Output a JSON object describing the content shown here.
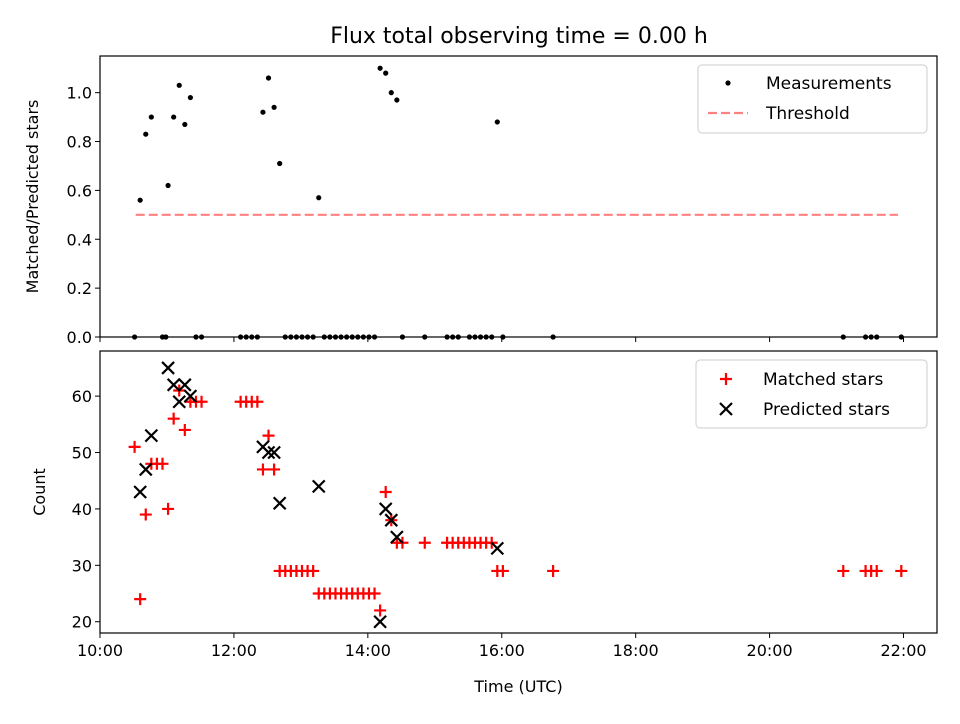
{
  "title": "Flux total observing time = 0.00 h",
  "colors": {
    "matched": "#ff0000",
    "predicted": "#000000",
    "measurement": "#000000",
    "threshold": "#ff8080"
  },
  "chart_data": [
    {
      "type": "scatter",
      "ylabel": "Matched/Predicted stars",
      "xlim": [
        "10:00",
        "22:30"
      ],
      "ylim": [
        0,
        1.15
      ],
      "yticks": [
        "0.0",
        "0.2",
        "0.4",
        "0.6",
        "0.8",
        "1.0"
      ],
      "legend": {
        "position": "upper right",
        "entries": [
          "Measurements",
          "Threshold"
        ]
      },
      "threshold": {
        "value": 0.5,
        "x_start": "10:32",
        "x_end": "21:55"
      },
      "measurements": {
        "x": [
          "10:36",
          "10:41",
          "10:46",
          "11:01",
          "11:06",
          "11:11",
          "11:16",
          "11:21",
          "12:26",
          "12:31",
          "12:36",
          "12:41",
          "13:16",
          "14:11",
          "14:16",
          "14:21",
          "14:26",
          "15:56",
          "10:31",
          "10:56",
          "10:59",
          "11:26",
          "11:31",
          "12:06",
          "12:11",
          "12:16",
          "12:21",
          "12:46",
          "12:51",
          "12:56",
          "13:01",
          "13:06",
          "13:11",
          "13:21",
          "13:26",
          "13:31",
          "13:36",
          "13:41",
          "13:46",
          "13:51",
          "13:56",
          "14:01",
          "14:06",
          "14:31",
          "14:51",
          "15:11",
          "15:16",
          "15:21",
          "15:31",
          "15:36",
          "15:41",
          "15:46",
          "15:51",
          "16:01",
          "16:46",
          "21:06",
          "21:26",
          "21:31",
          "21:36",
          "21:58"
        ],
        "y": [
          0.56,
          0.83,
          0.9,
          0.62,
          0.9,
          1.03,
          0.87,
          0.98,
          0.92,
          1.06,
          0.94,
          0.71,
          0.57,
          1.1,
          1.08,
          1.0,
          0.97,
          0.88,
          0,
          0,
          0,
          0,
          0,
          0,
          0,
          0,
          0,
          0,
          0,
          0,
          0,
          0,
          0,
          0,
          0,
          0,
          0,
          0,
          0,
          0,
          0,
          0,
          0,
          0,
          0,
          0,
          0,
          0,
          0,
          0,
          0,
          0,
          0,
          0,
          0,
          0,
          0,
          0,
          0,
          0
        ]
      }
    },
    {
      "type": "scatter",
      "xlabel": "Time (UTC)",
      "ylabel": "Count",
      "xlim": [
        "10:00",
        "22:30"
      ],
      "ylim": [
        18,
        68
      ],
      "xticks": [
        "10:00",
        "12:00",
        "14:00",
        "16:00",
        "18:00",
        "20:00",
        "22:00"
      ],
      "yticks": [
        "20",
        "30",
        "40",
        "50",
        "60"
      ],
      "legend": {
        "position": "upper right",
        "entries": [
          "Matched stars",
          "Predicted stars"
        ]
      },
      "series": [
        {
          "name": "Matched stars",
          "x": [
            "10:31",
            "10:36",
            "10:41",
            "10:46",
            "10:51",
            "10:56",
            "11:01",
            "11:06",
            "11:11",
            "11:16",
            "11:21",
            "11:26",
            "11:31",
            "12:06",
            "12:11",
            "12:16",
            "12:21",
            "12:26",
            "12:31",
            "12:36",
            "12:41",
            "12:46",
            "12:51",
            "12:56",
            "13:01",
            "13:06",
            "13:11",
            "13:16",
            "13:21",
            "13:26",
            "13:31",
            "13:36",
            "13:41",
            "13:46",
            "13:51",
            "13:56",
            "14:01",
            "14:06",
            "14:11",
            "14:16",
            "14:21",
            "14:26",
            "14:31",
            "14:51",
            "15:11",
            "15:16",
            "15:21",
            "15:26",
            "15:31",
            "15:36",
            "15:41",
            "15:46",
            "15:51",
            "15:56",
            "16:01",
            "16:46",
            "21:06",
            "21:26",
            "21:31",
            "21:36",
            "21:58"
          ],
          "y": [
            51,
            24,
            39,
            48,
            48,
            48,
            40,
            56,
            61,
            54,
            59,
            59,
            59,
            59,
            59,
            59,
            59,
            47,
            53,
            47,
            29,
            29,
            29,
            29,
            29,
            29,
            29,
            25,
            25,
            25,
            25,
            25,
            25,
            25,
            25,
            25,
            25,
            25,
            22,
            43,
            38,
            34,
            34,
            34,
            34,
            34,
            34,
            34,
            34,
            34,
            34,
            34,
            34,
            29,
            29,
            29,
            29,
            29,
            29,
            29,
            29
          ]
        },
        {
          "name": "Predicted stars",
          "x": [
            "10:36",
            "10:41",
            "10:46",
            "11:01",
            "11:06",
            "11:11",
            "11:16",
            "11:21",
            "12:26",
            "12:31",
            "12:36",
            "12:41",
            "13:16",
            "14:11",
            "14:16",
            "14:21",
            "14:26",
            "15:56"
          ],
          "y": [
            43,
            47,
            53,
            65,
            62,
            59,
            62,
            60,
            51,
            50,
            50,
            41,
            44,
            20,
            40,
            38,
            35,
            33
          ]
        }
      ]
    }
  ]
}
